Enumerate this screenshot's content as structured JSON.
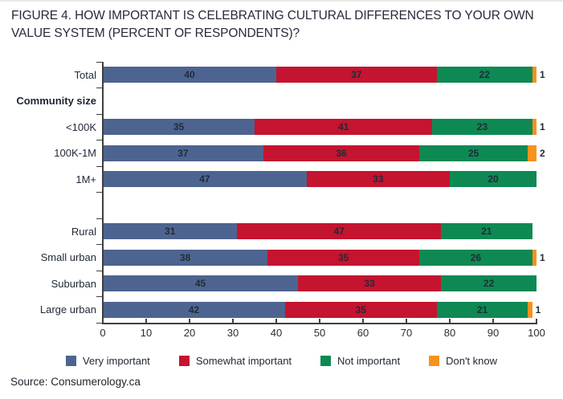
{
  "chart_data": {
    "type": "bar",
    "orientation": "horizontal",
    "stacked": true,
    "title": "FIGURE 4. HOW IMPORTANT IS CELEBRATING CULTURAL DIFFERENCES TO YOUR OWN VALUE SYSTEM (PERCENT OF RESPONDENTS)?",
    "xlabel": "",
    "ylabel": "",
    "xlim": [
      0,
      100
    ],
    "x_ticks": [
      0,
      10,
      20,
      30,
      40,
      50,
      60,
      70,
      80,
      90,
      100
    ],
    "grid": false,
    "legend_position": "bottom",
    "series_names": [
      "Very important",
      "Somewhat important",
      "Not important",
      "Don't know"
    ],
    "series_colors": [
      "#4e6490",
      "#c4142f",
      "#0e8953",
      "#f6921e"
    ],
    "rows": [
      {
        "kind": "bar",
        "label": "Total",
        "values": [
          40,
          37,
          22,
          1
        ]
      },
      {
        "kind": "group-header",
        "label": "Community size"
      },
      {
        "kind": "bar",
        "label": "<100K",
        "values": [
          35,
          41,
          23,
          1
        ]
      },
      {
        "kind": "bar",
        "label": "100K-1M",
        "values": [
          37,
          36,
          25,
          2
        ]
      },
      {
        "kind": "bar",
        "label": "1M+",
        "values": [
          47,
          33,
          20,
          0
        ]
      },
      {
        "kind": "spacer"
      },
      {
        "kind": "bar",
        "label": "Rural",
        "values": [
          31,
          47,
          21,
          0
        ]
      },
      {
        "kind": "bar",
        "label": "Small urban",
        "values": [
          38,
          35,
          26,
          1
        ]
      },
      {
        "kind": "bar",
        "label": "Suburban",
        "values": [
          45,
          33,
          22,
          0
        ]
      },
      {
        "kind": "bar",
        "label": "Large urban",
        "values": [
          42,
          35,
          21,
          1
        ]
      }
    ],
    "legend": [
      {
        "label": "Very important",
        "color": "#4e6490"
      },
      {
        "label": "Somewhat important",
        "color": "#c4142f"
      },
      {
        "label": "Not important",
        "color": "#0e8953"
      },
      {
        "label": "Don't know",
        "color": "#f6921e"
      }
    ],
    "source": "Source: Consumerology.ca"
  }
}
